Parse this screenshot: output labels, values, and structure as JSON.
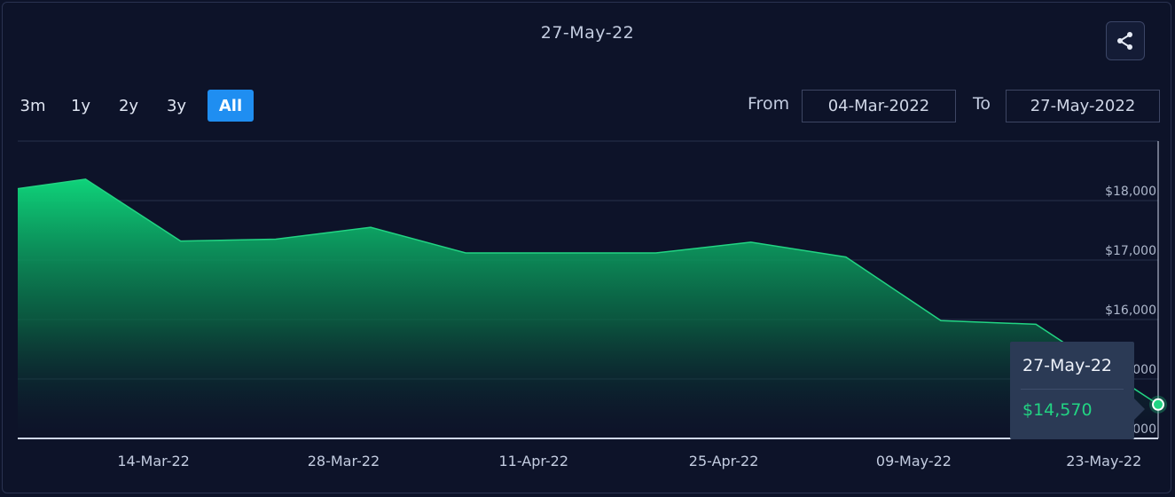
{
  "header": {
    "title": "27-May-22",
    "share_icon": "share-icon"
  },
  "range_buttons": [
    {
      "label": "3m",
      "active": false
    },
    {
      "label": "1y",
      "active": false
    },
    {
      "label": "2y",
      "active": false
    },
    {
      "label": "3y",
      "active": false
    },
    {
      "label": "All",
      "active": true
    }
  ],
  "date_range": {
    "from_label": "From",
    "from_value": "04-Mar-2022",
    "to_label": "To",
    "to_value": "27-May-2022"
  },
  "tooltip": {
    "date": "27-May-22",
    "value": "$14,570"
  },
  "colors": {
    "line": "#22d483",
    "fill_top": "#0ed37a",
    "background": "#0d1329",
    "grid": "#26304a"
  },
  "chart_data": {
    "type": "area",
    "x": [
      "2022-03-04",
      "2022-03-09",
      "2022-03-16",
      "2022-03-23",
      "2022-03-30",
      "2022-04-06",
      "2022-04-13",
      "2022-04-20",
      "2022-04-27",
      "2022-05-04",
      "2022-05-11",
      "2022-05-18",
      "2022-05-27"
    ],
    "values": [
      18200,
      18360,
      17320,
      17350,
      17550,
      17120,
      17120,
      17120,
      17300,
      17050,
      15980,
      15920,
      14570
    ],
    "ylim": [
      14000,
      19000
    ],
    "yticks": [
      14000,
      15000,
      16000,
      17000,
      18000
    ],
    "ytick_labels": [
      "$14,000",
      "$15,000",
      "$16,000",
      "$17,000",
      "$18,000"
    ],
    "xticks": [
      "2022-03-14",
      "2022-03-28",
      "2022-04-11",
      "2022-04-25",
      "2022-05-09",
      "2022-05-23"
    ],
    "xtick_labels": [
      "14-Mar-22",
      "28-Mar-22",
      "11-Apr-22",
      "25-Apr-22",
      "09-May-22",
      "23-May-22"
    ],
    "grid": true,
    "highlighted_point": {
      "x": "2022-05-27",
      "y": 14570
    }
  }
}
